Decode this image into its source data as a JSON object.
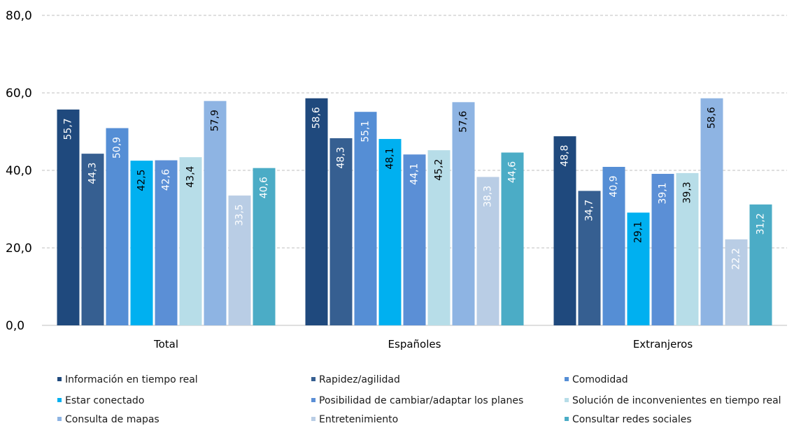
{
  "chart_data": {
    "type": "bar",
    "categories": [
      "Total",
      "Españoles",
      "Extranjeros"
    ],
    "ylim": [
      0,
      80
    ],
    "yticks": [
      "0,0",
      "20,0",
      "40,0",
      "60,0",
      "80,0"
    ],
    "grid": true,
    "legend_position": "bottom",
    "series": [
      {
        "name": "Información en tiempo real",
        "color": "#1f497d",
        "values": [
          55.7,
          58.6,
          48.8
        ],
        "labels": [
          "55,7",
          "58,6",
          "48,8"
        ]
      },
      {
        "name": "Rapidez/agilidad",
        "color": "#365f91",
        "values": [
          44.3,
          48.3,
          34.7
        ],
        "labels": [
          "44,3",
          "48,3",
          "34,7"
        ]
      },
      {
        "name": "Comodidad",
        "color": "#558ed5",
        "values": [
          50.9,
          55.1,
          40.9
        ],
        "labels": [
          "50,9",
          "55,1",
          "40,9"
        ]
      },
      {
        "name": "Estar conectado",
        "color": "#00b0f0",
        "values": [
          42.5,
          48.1,
          29.1
        ],
        "labels": [
          "42,5",
          "48,1",
          "29,1"
        ]
      },
      {
        "name": "Posibilidad de cambiar/adaptar los planes",
        "color": "#5b8fd6",
        "values": [
          42.6,
          44.1,
          39.1
        ],
        "labels": [
          "42,6",
          "44,1",
          "39,1"
        ]
      },
      {
        "name": "Solución de inconvenientes en tiempo real",
        "color": "#b7dde8",
        "values": [
          43.4,
          45.2,
          39.3
        ],
        "labels": [
          "43,4",
          "45,2",
          "39,3"
        ]
      },
      {
        "name": "Consulta de mapas",
        "color": "#8eb4e3",
        "values": [
          57.9,
          57.6,
          58.6
        ],
        "labels": [
          "57,9",
          "57,6",
          "58,6"
        ]
      },
      {
        "name": "Entretenimiento",
        "color": "#b9cde5",
        "values": [
          33.5,
          38.3,
          22.2
        ],
        "labels": [
          "33,5",
          "38,3",
          "22,2"
        ]
      },
      {
        "name": "Consultar redes sociales",
        "color": "#4bacc6",
        "values": [
          40.6,
          44.6,
          31.2
        ],
        "labels": [
          "40,6",
          "44,6",
          "31,2"
        ]
      }
    ]
  }
}
